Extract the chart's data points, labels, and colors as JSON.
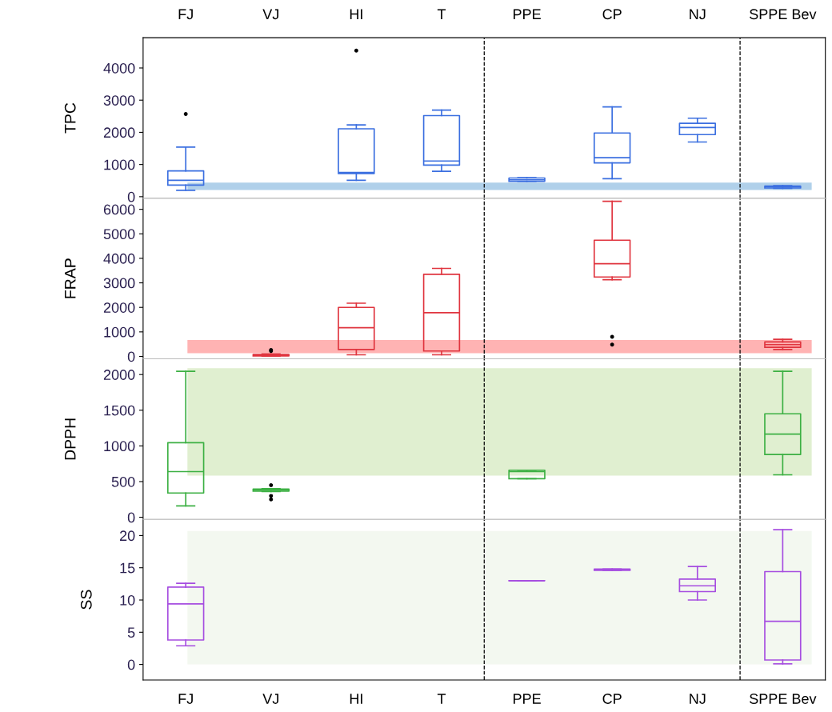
{
  "chart_data": [
    {
      "type": "box",
      "ylabel": "TPC",
      "categories": [
        "FJ",
        "VJ",
        "HI",
        "T",
        "PPE",
        "CP",
        "NJ",
        "SPPE Bev"
      ],
      "ylim": [
        -50,
        4940
      ],
      "yticks": [
        0,
        1000,
        2000,
        3000,
        4000
      ],
      "series": [
        {
          "color": "#3b6fe0",
          "boxes": [
            {
              "low": 200,
              "q1": 360,
              "median": 510,
              "q3": 800,
              "high": 1540,
              "outliers": [
                2570
              ]
            },
            null,
            {
              "low": 510,
              "q1": 720,
              "median": 750,
              "q3": 2110,
              "high": 2230,
              "outliers": [
                4540
              ]
            },
            {
              "low": 790,
              "q1": 980,
              "median": 1110,
              "q3": 2520,
              "high": 2690
            },
            {
              "low": 475,
              "q1": 480,
              "median": 525,
              "q3": 580,
              "high": 590
            },
            {
              "low": 560,
              "q1": 1050,
              "median": 1210,
              "q3": 1980,
              "high": 2790
            },
            {
              "low": 1700,
              "q1": 1930,
              "median": 2150,
              "q3": 2280,
              "high": 2440
            },
            {
              "low": 260,
              "q1": 270,
              "median": 310,
              "q3": 330,
              "high": 340
            }
          ]
        }
      ],
      "bands": [
        {
          "axis": "y",
          "from": 210,
          "to": 440,
          "color": "#b0d0ea"
        }
      ]
    },
    {
      "type": "box",
      "ylabel": "FRAP",
      "categories": [
        null,
        null,
        null,
        null,
        null,
        null,
        null,
        null
      ],
      "ylim": [
        -100,
        6450
      ],
      "yticks": [
        0,
        1000,
        2000,
        3000,
        4000,
        5000,
        6000
      ],
      "tick_labels": "y",
      "series": [
        {
          "color": "#e0353f",
          "boxes": [
            null,
            {
              "low": 10,
              "q1": 20,
              "median": 50,
              "q3": 80,
              "high": 100,
              "outliers": [
                220,
                260
              ]
            },
            {
              "low": 65,
              "q1": 280,
              "median": 1170,
              "q3": 2000,
              "high": 2170
            },
            {
              "low": 65,
              "q1": 220,
              "median": 1780,
              "q3": 3350,
              "high": 3590
            },
            null,
            {
              "low": 3130,
              "q1": 3240,
              "median": 3780,
              "q3": 4740,
              "high": 6330,
              "outliers": [
                480,
                800
              ]
            },
            null,
            {
              "low": 280,
              "q1": 370,
              "median": 480,
              "q3": 590,
              "high": 700
            }
          ]
        }
      ],
      "bands": [
        {
          "axis": "y",
          "from": 130,
          "to": 670,
          "color": "#ffb3b3"
        }
      ]
    },
    {
      "type": "box",
      "ylabel": "DPPH",
      "categories": [
        null,
        null,
        null,
        null,
        null,
        null,
        null,
        null
      ],
      "ylim": [
        -30,
        2220
      ],
      "yticks": [
        0,
        500,
        1000,
        1500,
        2000
      ],
      "tick_labels": "y",
      "series": [
        {
          "color": "#3cb043",
          "boxes": [
            {
              "low": 160,
              "q1": 340,
              "median": 640,
              "q3": 1045,
              "high": 2045
            },
            {
              "low": 360,
              "q1": 365,
              "median": 380,
              "q3": 395,
              "high": 400,
              "outliers": [
                250,
                300,
                450
              ]
            },
            null,
            null,
            {
              "low": 540,
              "q1": 540,
              "median": 640,
              "q3": 660,
              "high": 660
            },
            null,
            null,
            {
              "low": 595,
              "q1": 880,
              "median": 1165,
              "q3": 1450,
              "high": 2045
            }
          ]
        }
      ],
      "bands": [
        {
          "axis": "y",
          "from": 585,
          "to": 2090,
          "color": "#e0efd0"
        }
      ]
    },
    {
      "type": "box",
      "ylabel": "SS",
      "categories": [
        "FJ",
        "VJ",
        "HI",
        "T",
        "PPE",
        "CP",
        "NJ",
        "SPPE Bev"
      ],
      "ylim": [
        -2.4,
        22.5
      ],
      "yticks": [
        0,
        5,
        10,
        15,
        20
      ],
      "series": [
        {
          "color": "#a64ee0",
          "boxes": [
            {
              "low": 2.9,
              "q1": 3.8,
              "median": 9.4,
              "q3": 12.0,
              "high": 12.6
            },
            null,
            null,
            null,
            {
              "low": 13.0,
              "q1": 13.0,
              "median": 13.0,
              "q3": 13.0,
              "high": 13.0
            },
            {
              "low": 14.6,
              "q1": 14.6,
              "median": 14.7,
              "q3": 14.8,
              "high": 14.8
            },
            {
              "low": 10.0,
              "q1": 11.3,
              "median": 12.2,
              "q3": 13.25,
              "high": 15.2
            },
            {
              "low": 0.1,
              "q1": 0.7,
              "median": 6.7,
              "q3": 14.4,
              "high": 20.9
            }
          ]
        }
      ],
      "bands": [
        {
          "axis": "y",
          "from": 0,
          "to": 20.7,
          "color": "#f3f8f0"
        }
      ]
    }
  ]
}
